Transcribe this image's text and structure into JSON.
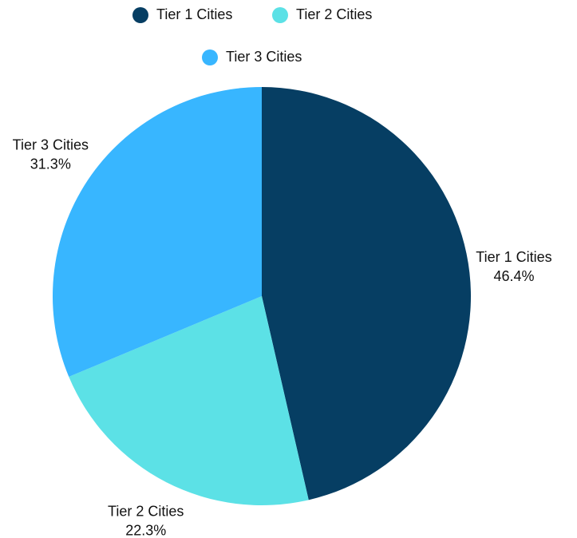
{
  "chart_data": {
    "type": "pie",
    "categories": [
      "Tier 1 Cities",
      "Tier 2 Cities",
      "Tier 3 Cities"
    ],
    "values": [
      46.4,
      22.3,
      31.3
    ],
    "value_labels": [
      "46.4%",
      "22.3%",
      "31.3%"
    ],
    "colors": [
      "#063e63",
      "#5ce1e6",
      "#38b6ff"
    ]
  }
}
